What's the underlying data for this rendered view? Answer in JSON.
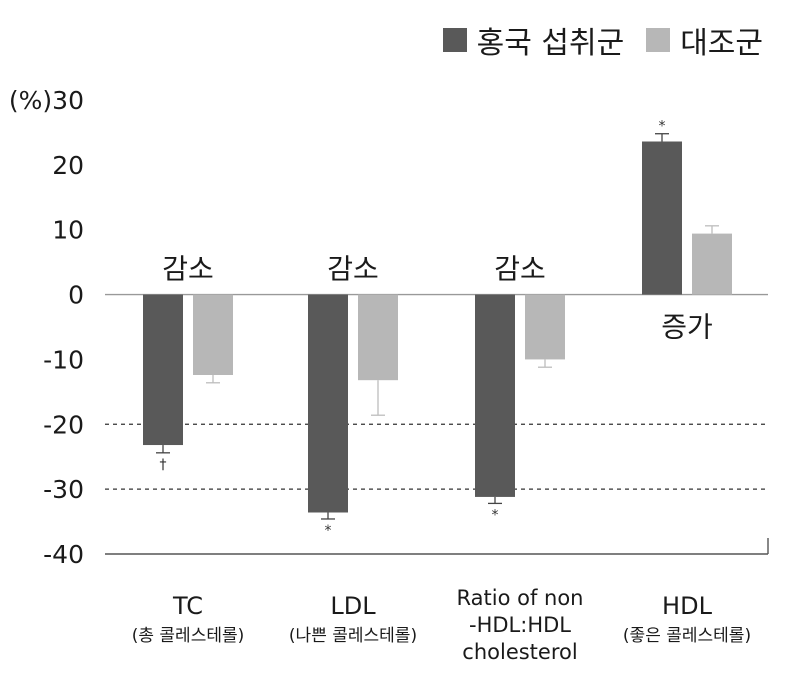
{
  "chart_data": {
    "type": "bar",
    "ylabel": "(%)",
    "ylim": [
      -40,
      30
    ],
    "yticks": [
      "30",
      "20",
      "10",
      "0",
      "-10",
      "-20",
      "-30",
      "-40"
    ],
    "reference_lines": [
      -20,
      -30
    ],
    "categories": [
      {
        "main": "TC",
        "sub": "(총 콜레스테롤)"
      },
      {
        "main": "LDL",
        "sub": "(나쁜 콜레스테롤)"
      },
      {
        "main": "Ratio of non -HDL:HDL cholesterol",
        "lines": [
          "Ratio of non",
          "-HDL:HDL",
          "cholesterol"
        ],
        "sub": ""
      },
      {
        "main": "HDL",
        "sub": "(좋은 콜레스테롤)"
      }
    ],
    "series": [
      {
        "name": "홍국 섭취군",
        "color": "#595959",
        "values": [
          -23.2,
          -33.6,
          -31.2,
          23.6
        ],
        "errors": [
          1.2,
          1.0,
          1.0,
          1.2
        ],
        "markers": [
          "†",
          "*",
          "*",
          "*"
        ]
      },
      {
        "name": "대조군",
        "color": "#b7b7b7",
        "values": [
          -12.4,
          -13.2,
          -10.0,
          9.4
        ],
        "errors": [
          1.2,
          5.4,
          1.2,
          1.2
        ]
      }
    ],
    "annotations": [
      "감소",
      "감소",
      "감소",
      "증가"
    ]
  }
}
